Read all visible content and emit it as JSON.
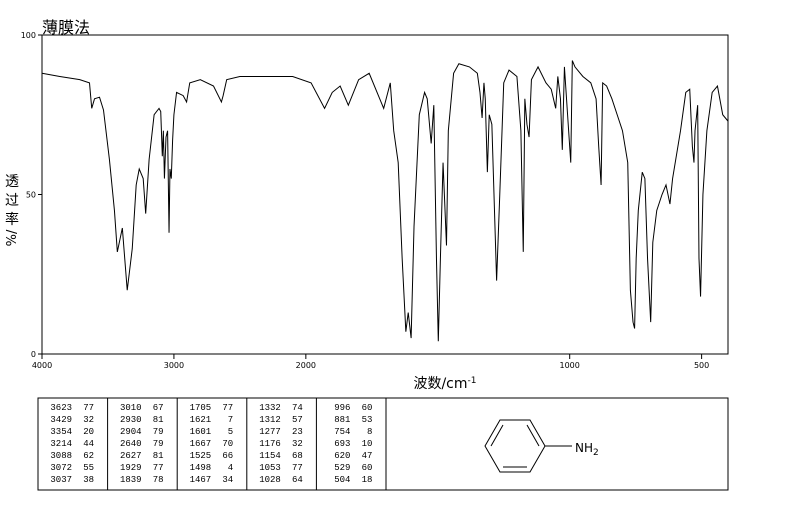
{
  "chart_data": {
    "type": "line",
    "title": "薄膜法",
    "x_label": "波数/cm",
    "x_label_sup": "-1",
    "y_label": "透过率",
    "y_label_unit": "%/",
    "xlim": [
      4000,
      400
    ],
    "x_break": 2000,
    "x_break_factor": 2,
    "xticks": [
      4000,
      3000,
      2000,
      1000,
      500
    ],
    "ylim": [
      0,
      100
    ],
    "yticks": [
      0,
      50,
      100
    ],
    "color": "#000000",
    "x": [
      4000,
      3865,
      3714,
      3640,
      3623,
      3602,
      3564,
      3534,
      3489,
      3451,
      3429,
      3391,
      3354,
      3316,
      3286,
      3263,
      3233,
      3214,
      3188,
      3150,
      3113,
      3100,
      3088,
      3080,
      3072,
      3060,
      3048,
      3037,
      3030,
      3020,
      3010,
      3000,
      2980,
      2930,
      2904,
      2880,
      2800,
      2700,
      2640,
      2627,
      2600,
      2500,
      2300,
      2100,
      1980,
      1929,
      1900,
      1870,
      1839,
      1800,
      1760,
      1705,
      1680,
      1667,
      1650,
      1635,
      1621,
      1612,
      1601,
      1590,
      1570,
      1550,
      1540,
      1525,
      1515,
      1505,
      1498,
      1490,
      1480,
      1467,
      1460,
      1440,
      1420,
      1380,
      1350,
      1340,
      1332,
      1325,
      1320,
      1312,
      1305,
      1295,
      1277,
      1265,
      1250,
      1230,
      1200,
      1185,
      1176,
      1170,
      1162,
      1154,
      1145,
      1120,
      1090,
      1070,
      1053,
      1045,
      1035,
      1028,
      1020,
      1008,
      996,
      990,
      980,
      950,
      920,
      900,
      890,
      881,
      875,
      860,
      840,
      820,
      800,
      780,
      770,
      760,
      754,
      748,
      740,
      725,
      715,
      705,
      693,
      685,
      670,
      650,
      635,
      620,
      610,
      580,
      560,
      545,
      535,
      529,
      525,
      515,
      510,
      504,
      495,
      480,
      460,
      440,
      420,
      400
    ],
    "values": [
      88,
      87,
      86,
      85,
      77,
      80,
      80.5,
      76.5,
      61,
      45,
      32,
      39.5,
      20,
      33,
      53,
      58,
      55,
      44,
      61,
      75,
      77,
      76,
      62,
      70,
      55,
      68,
      70,
      38,
      58,
      55,
      67,
      75,
      82,
      81,
      79,
      85,
      86,
      84,
      79,
      81,
      86,
      87,
      87,
      87,
      85,
      77,
      82,
      84,
      78,
      86,
      88,
      77,
      85,
      70,
      60,
      30,
      7,
      13,
      5,
      40,
      75,
      82,
      80,
      66,
      78,
      30,
      4,
      30,
      60,
      34,
      70,
      88,
      91,
      90,
      88,
      82,
      74,
      85,
      80,
      57,
      75,
      72,
      23,
      50,
      85,
      89,
      87,
      70,
      32,
      80,
      72,
      68,
      86,
      90,
      85,
      83,
      77,
      87,
      80,
      64,
      90,
      75,
      60,
      92,
      90,
      87,
      85,
      80,
      65,
      53,
      85,
      84,
      80,
      75,
      70,
      60,
      20,
      10,
      8,
      30,
      45,
      57,
      55,
      30,
      10,
      35,
      45,
      50,
      53,
      47,
      55,
      70,
      82,
      83,
      65,
      60,
      70,
      78,
      30,
      18,
      50,
      70,
      82,
      84,
      75,
      73
    ]
  },
  "peak_table": [
    [
      3623,
      77
    ],
    [
      3429,
      32
    ],
    [
      3354,
      20
    ],
    [
      3214,
      44
    ],
    [
      3088,
      62
    ],
    [
      3072,
      55
    ],
    [
      3037,
      38
    ],
    [
      3010,
      67
    ],
    [
      2930,
      81
    ],
    [
      2904,
      79
    ],
    [
      2640,
      79
    ],
    [
      2627,
      81
    ],
    [
      1929,
      77
    ],
    [
      1839,
      78
    ],
    [
      1705,
      77
    ],
    [
      1621,
      7
    ],
    [
      1601,
      5
    ],
    [
      1667,
      70
    ],
    [
      1525,
      66
    ],
    [
      1498,
      4
    ],
    [
      1467,
      34
    ],
    [
      1332,
      74
    ],
    [
      1312,
      57
    ],
    [
      1277,
      23
    ],
    [
      1176,
      32
    ],
    [
      1154,
      68
    ],
    [
      1053,
      77
    ],
    [
      1028,
      64
    ],
    [
      996,
      60
    ],
    [
      881,
      53
    ],
    [
      754,
      8
    ],
    [
      693,
      10
    ],
    [
      620,
      47
    ],
    [
      529,
      60
    ],
    [
      504,
      18
    ]
  ],
  "structure": {
    "label": "NH",
    "subscript": "2"
  }
}
